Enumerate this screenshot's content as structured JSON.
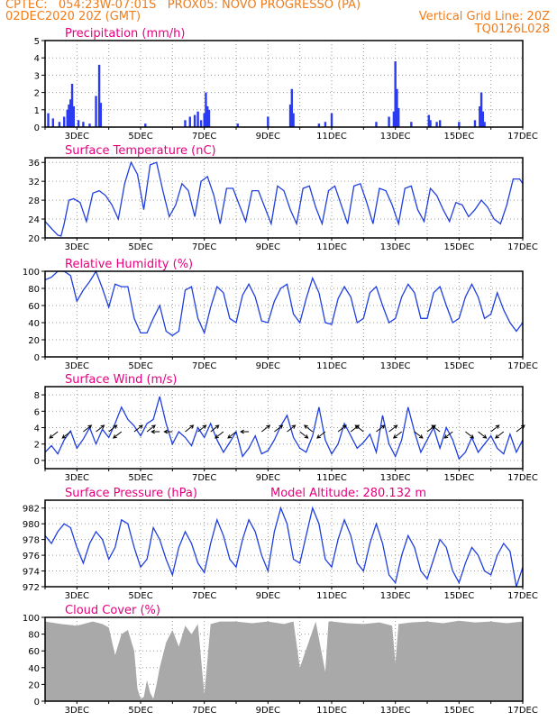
{
  "header": {
    "line1_left": "CPTEC:   054:23W-07:01S   PROX05: NOVO PROGRESSO (PA)",
    "line2_left": "02DEC2020 20Z (GMT)",
    "line2_right": "Vertical Grid Line: 20Z",
    "line3_right": "TQ0126L028"
  },
  "colors": {
    "header": "#f07c1a",
    "title": "#e6007e",
    "line": "#1f3fe0",
    "bar": "#2a3bf0",
    "cloud": "#a9a9a9"
  },
  "x_labels": [
    "3DEC",
    "5DEC",
    "7DEC",
    "9DEC",
    "11DEC",
    "13DEC",
    "15DEC",
    "17DEC"
  ],
  "chart_data": [
    {
      "type": "bar",
      "title": "Precipitation (mm/h)",
      "ylim": [
        0,
        5
      ],
      "yticks": [
        0,
        1,
        2,
        3,
        4,
        5
      ],
      "x_range_days": [
        2.0,
        17.0
      ],
      "series": [
        {
          "x_days": [
            2.1,
            2.25,
            2.45,
            2.6,
            2.7,
            2.75,
            2.8,
            2.85,
            2.9,
            3.05,
            3.2,
            3.4,
            3.6,
            3.7,
            3.75,
            5.15,
            6.4,
            6.55,
            6.7,
            6.8,
            6.9,
            7.0,
            7.05,
            7.1,
            7.15,
            8.05,
            9.0,
            9.7,
            9.75,
            9.8,
            10.6,
            10.8,
            11.0,
            12.4,
            12.8,
            12.95,
            13.0,
            13.05,
            13.1,
            13.5,
            14.05,
            14.1,
            14.3,
            14.4,
            15.0,
            15.5,
            15.65,
            15.7,
            15.75,
            15.8
          ],
          "values": [
            0.8,
            0.5,
            0.3,
            0.6,
            1.0,
            1.3,
            1.6,
            2.5,
            1.2,
            0.4,
            0.3,
            0.2,
            1.8,
            3.6,
            1.4,
            0.2,
            0.4,
            0.6,
            0.7,
            0.9,
            0.4,
            0.8,
            2.0,
            1.2,
            1.0,
            0.2,
            0.6,
            1.3,
            2.2,
            0.8,
            0.2,
            0.3,
            0.8,
            0.3,
            0.6,
            0.9,
            3.8,
            2.2,
            1.1,
            0.3,
            0.7,
            0.4,
            0.3,
            0.4,
            0.3,
            0.4,
            1.2,
            2.0,
            0.9,
            0.3
          ]
        }
      ]
    },
    {
      "type": "line",
      "title": "Surface Temperature (nC)",
      "ylim": [
        20,
        37
      ],
      "yticks": [
        20,
        24,
        28,
        32,
        36
      ],
      "series": [
        {
          "x_days": [
            2.0,
            2.2,
            2.4,
            2.5,
            2.6,
            2.75,
            2.9,
            3.1,
            3.3,
            3.5,
            3.7,
            3.9,
            4.1,
            4.3,
            4.5,
            4.7,
            4.9,
            5.1,
            5.3,
            5.5,
            5.7,
            5.9,
            6.1,
            6.3,
            6.5,
            6.7,
            6.9,
            7.1,
            7.3,
            7.5,
            7.7,
            7.9,
            8.1,
            8.3,
            8.5,
            8.7,
            8.9,
            9.1,
            9.3,
            9.5,
            9.7,
            9.9,
            10.1,
            10.3,
            10.5,
            10.7,
            10.9,
            11.1,
            11.3,
            11.5,
            11.7,
            11.9,
            12.1,
            12.3,
            12.5,
            12.7,
            12.9,
            13.1,
            13.3,
            13.5,
            13.7,
            13.9,
            14.1,
            14.3,
            14.5,
            14.7,
            14.9,
            15.1,
            15.3,
            15.5,
            15.7,
            15.9,
            16.1,
            16.3,
            16.5,
            16.7,
            16.9,
            17.0
          ],
          "values": [
            23.5,
            22.0,
            20.6,
            20.4,
            23.0,
            28.0,
            28.3,
            27.5,
            23.5,
            29.5,
            30.0,
            29.0,
            27.0,
            24.0,
            31.5,
            36.0,
            33.5,
            26.0,
            35.5,
            36.0,
            30.0,
            24.5,
            27.0,
            31.5,
            30.0,
            24.5,
            32.0,
            33.0,
            29.0,
            23.0,
            30.5,
            30.5,
            27.0,
            23.5,
            30.0,
            30.0,
            26.5,
            23.0,
            31.0,
            30.0,
            26.0,
            23.0,
            30.5,
            31.0,
            26.5,
            23.0,
            30.0,
            31.0,
            27.0,
            23.0,
            31.0,
            31.5,
            27.5,
            23.0,
            30.5,
            30.0,
            27.0,
            23.0,
            30.5,
            31.0,
            26.0,
            23.5,
            30.5,
            29.0,
            26.0,
            23.5,
            27.5,
            27.0,
            24.5,
            26.0,
            28.0,
            26.5,
            24.0,
            23.0,
            27.0,
            32.5,
            32.5,
            31.5
          ]
        }
      ]
    },
    {
      "type": "line",
      "title": "Relative Humidity (%)",
      "ylim": [
        0,
        100
      ],
      "yticks": [
        0,
        20,
        40,
        60,
        80,
        100
      ],
      "series": [
        {
          "x_days": [
            2.0,
            2.2,
            2.4,
            2.6,
            2.8,
            3.0,
            3.2,
            3.4,
            3.6,
            3.8,
            4.0,
            4.2,
            4.4,
            4.6,
            4.8,
            5.0,
            5.2,
            5.4,
            5.6,
            5.8,
            6.0,
            6.2,
            6.4,
            6.6,
            6.8,
            7.0,
            7.2,
            7.4,
            7.6,
            7.8,
            8.0,
            8.2,
            8.4,
            8.6,
            8.8,
            9.0,
            9.2,
            9.4,
            9.6,
            9.8,
            10.0,
            10.2,
            10.4,
            10.6,
            10.8,
            11.0,
            11.2,
            11.4,
            11.6,
            11.8,
            12.0,
            12.2,
            12.4,
            12.6,
            12.8,
            13.0,
            13.2,
            13.4,
            13.6,
            13.8,
            14.0,
            14.2,
            14.4,
            14.6,
            14.8,
            15.0,
            15.2,
            15.4,
            15.6,
            15.8,
            16.0,
            16.2,
            16.4,
            16.6,
            16.8,
            17.0
          ],
          "values": [
            90,
            93,
            100,
            100,
            95,
            65,
            78,
            88,
            100,
            80,
            58,
            85,
            82,
            82,
            45,
            28,
            28,
            45,
            60,
            30,
            25,
            30,
            78,
            82,
            45,
            28,
            58,
            82,
            75,
            45,
            40,
            72,
            85,
            70,
            42,
            40,
            65,
            80,
            85,
            50,
            40,
            68,
            92,
            75,
            40,
            38,
            68,
            82,
            70,
            40,
            45,
            75,
            82,
            60,
            40,
            45,
            70,
            85,
            75,
            45,
            45,
            75,
            82,
            60,
            40,
            45,
            70,
            85,
            70,
            45,
            50,
            75,
            55,
            40,
            30,
            40
          ]
        }
      ]
    },
    {
      "type": "line",
      "title": "Surface Wind (m/s)",
      "ylim": [
        -1,
        9
      ],
      "yticks": [
        0,
        2,
        4,
        6,
        8
      ],
      "series": [
        {
          "x_days": [
            2.0,
            2.2,
            2.4,
            2.6,
            2.8,
            3.0,
            3.2,
            3.4,
            3.6,
            3.8,
            4.0,
            4.2,
            4.4,
            4.6,
            4.8,
            5.0,
            5.2,
            5.4,
            5.6,
            5.8,
            6.0,
            6.2,
            6.4,
            6.6,
            6.8,
            7.0,
            7.2,
            7.4,
            7.6,
            7.8,
            8.0,
            8.2,
            8.4,
            8.6,
            8.8,
            9.0,
            9.2,
            9.4,
            9.6,
            9.8,
            10.0,
            10.2,
            10.4,
            10.6,
            10.8,
            11.0,
            11.2,
            11.4,
            11.6,
            11.8,
            12.0,
            12.2,
            12.4,
            12.6,
            12.8,
            13.0,
            13.2,
            13.4,
            13.6,
            13.8,
            14.0,
            14.2,
            14.4,
            14.6,
            14.8,
            15.0,
            15.2,
            15.4,
            15.6,
            15.8,
            16.0,
            16.2,
            16.4,
            16.6,
            16.8,
            17.0
          ],
          "values": [
            1.0,
            1.8,
            0.8,
            2.5,
            3.6,
            1.5,
            2.6,
            4.0,
            2.0,
            3.8,
            2.8,
            4.5,
            6.5,
            5.0,
            4.2,
            3.0,
            4.5,
            5.0,
            7.8,
            4.5,
            2.0,
            3.5,
            2.8,
            1.8,
            4.0,
            2.8,
            4.5,
            2.5,
            1.0,
            2.2,
            3.5,
            0.5,
            1.5,
            3.0,
            0.8,
            1.2,
            2.5,
            4.2,
            5.5,
            2.8,
            1.5,
            1.0,
            3.0,
            6.5,
            2.5,
            0.8,
            2.0,
            4.5,
            3.0,
            1.5,
            2.2,
            3.2,
            1.0,
            5.5,
            2.0,
            0.5,
            2.5,
            6.5,
            3.5,
            1.0,
            2.5,
            4.0,
            1.5,
            4.0,
            2.5,
            0.2,
            1.0,
            2.8,
            1.0,
            2.0,
            3.0,
            1.5,
            0.8,
            3.2,
            1.0,
            2.5
          ]
        }
      ],
      "arrows_dx": [
        -1,
        -1,
        1,
        1,
        1,
        -1,
        1,
        1,
        -1,
        -1,
        1,
        1,
        1,
        -1,
        -1,
        -1,
        1,
        1,
        1,
        1,
        -1,
        -1,
        1,
        1,
        -1,
        1,
        1,
        -1,
        1,
        1,
        -1,
        -1,
        1,
        1,
        1,
        -1,
        1
      ],
      "arrows_dy": [
        1,
        1,
        -1,
        -1,
        -1,
        1,
        -1,
        -1,
        0,
        0,
        -1,
        -1,
        -1,
        1,
        1,
        0,
        -1,
        -1,
        -1,
        1,
        -1,
        1,
        -1,
        -1,
        -1,
        -1,
        -1,
        1,
        1,
        -1,
        -1,
        1,
        1,
        1,
        -1,
        1,
        -1
      ]
    },
    {
      "type": "line",
      "title": "Surface Pressure (hPa)",
      "annotation": "Model Altitude: 280.132 m",
      "ylim": [
        972,
        983
      ],
      "yticks": [
        972,
        974,
        976,
        978,
        980,
        982
      ],
      "series": [
        {
          "x_days": [
            2.0,
            2.2,
            2.4,
            2.6,
            2.8,
            3.0,
            3.2,
            3.4,
            3.6,
            3.8,
            4.0,
            4.2,
            4.4,
            4.6,
            4.8,
            5.0,
            5.2,
            5.4,
            5.6,
            5.8,
            6.0,
            6.2,
            6.4,
            6.6,
            6.8,
            7.0,
            7.2,
            7.4,
            7.6,
            7.8,
            8.0,
            8.2,
            8.4,
            8.6,
            8.8,
            9.0,
            9.2,
            9.4,
            9.6,
            9.8,
            10.0,
            10.2,
            10.4,
            10.6,
            10.8,
            11.0,
            11.2,
            11.4,
            11.6,
            11.8,
            12.0,
            12.2,
            12.4,
            12.6,
            12.8,
            13.0,
            13.2,
            13.4,
            13.6,
            13.8,
            14.0,
            14.2,
            14.4,
            14.6,
            14.8,
            15.0,
            15.2,
            15.4,
            15.6,
            15.8,
            16.0,
            16.2,
            16.4,
            16.6,
            16.8,
            17.0
          ],
          "values": [
            978.5,
            977.5,
            979.0,
            980.0,
            979.5,
            977.0,
            975.0,
            977.5,
            979.0,
            978.0,
            975.5,
            977.0,
            980.5,
            980.0,
            977.0,
            974.5,
            975.5,
            979.5,
            978.0,
            975.5,
            973.5,
            977.0,
            979.0,
            977.5,
            975.0,
            973.8,
            977.5,
            980.5,
            978.5,
            975.5,
            974.5,
            978.0,
            980.5,
            979.0,
            976.0,
            974.0,
            979.0,
            982.0,
            980.0,
            975.5,
            975.0,
            978.5,
            982.0,
            980.0,
            975.5,
            974.5,
            978.0,
            980.5,
            978.5,
            975.0,
            974.0,
            977.5,
            980.0,
            977.5,
            973.5,
            972.5,
            976.0,
            978.5,
            977.0,
            974.0,
            973.0,
            975.5,
            978.0,
            977.0,
            974.0,
            972.5,
            975.0,
            977.0,
            976.0,
            974.0,
            973.5,
            976.0,
            977.5,
            976.5,
            972.0,
            974.5
          ]
        }
      ]
    },
    {
      "type": "area",
      "title": "Cloud Cover (%)",
      "ylim": [
        0,
        100
      ],
      "yticks": [
        0,
        20,
        40,
        60,
        80,
        100
      ],
      "series": [
        {
          "x_days": [
            2.0,
            2.5,
            3.0,
            3.5,
            3.8,
            4.0,
            4.2,
            4.4,
            4.6,
            4.8,
            4.9,
            5.0,
            5.1,
            5.2,
            5.3,
            5.4,
            5.5,
            5.6,
            5.8,
            6.0,
            6.2,
            6.4,
            6.6,
            6.8,
            7.0,
            7.2,
            7.5,
            8.0,
            8.5,
            9.0,
            9.5,
            9.8,
            10.0,
            10.5,
            10.8,
            10.9,
            11.0,
            11.5,
            12.0,
            12.5,
            12.9,
            13.0,
            13.1,
            13.5,
            14.0,
            14.5,
            15.0,
            15.5,
            16.0,
            16.5,
            17.0
          ],
          "values": [
            95,
            92,
            90,
            95,
            92,
            88,
            55,
            80,
            85,
            60,
            15,
            3,
            5,
            25,
            10,
            3,
            20,
            40,
            70,
            85,
            65,
            90,
            80,
            92,
            8,
            92,
            95,
            95,
            93,
            95,
            92,
            95,
            40,
            95,
            35,
            95,
            95,
            93,
            92,
            94,
            90,
            45,
            92,
            94,
            95,
            93,
            96,
            94,
            95,
            93,
            95
          ]
        }
      ]
    }
  ]
}
